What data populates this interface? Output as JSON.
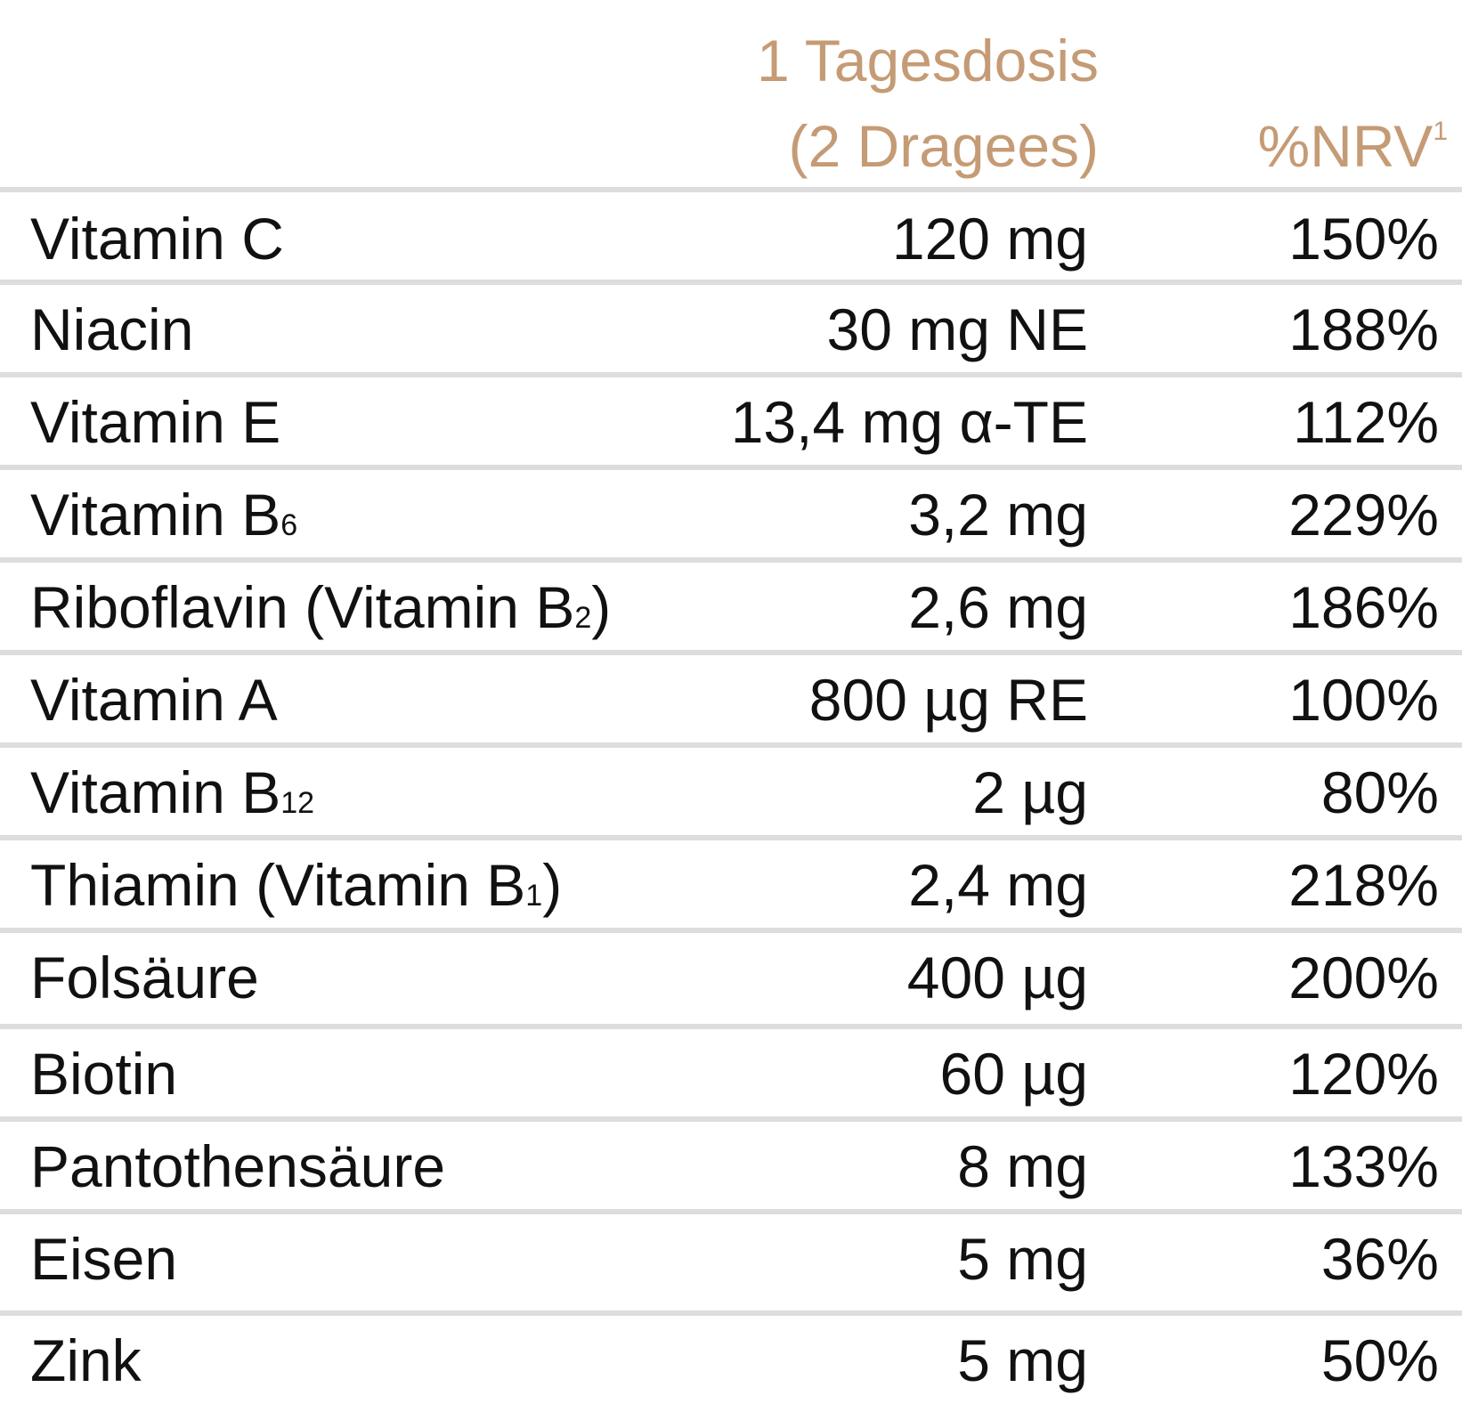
{
  "header": {
    "dose_line1": "1 Tagesdosis",
    "dose_line2": "(2 Dragees)",
    "nrv_label": "%NRV",
    "nrv_footnote": "1"
  },
  "colors": {
    "header_text": "#c59b75",
    "body_text": "#111111",
    "rule": "#dddddd",
    "background": "#ffffff"
  },
  "rows": [
    {
      "name": "Vitamin C",
      "sub": "",
      "suffix": "",
      "dose": "120 mg",
      "nrv": "150%"
    },
    {
      "name": "Niacin",
      "sub": "",
      "suffix": "",
      "dose": "30 mg NE",
      "nrv": "188%"
    },
    {
      "name": "Vitamin E",
      "sub": "",
      "suffix": "",
      "dose": "13,4 mg α-TE",
      "nrv": "112%"
    },
    {
      "name": "Vitamin B",
      "sub": "6",
      "suffix": "",
      "dose": "3,2 mg",
      "nrv": "229%"
    },
    {
      "name": "Riboflavin (Vitamin B",
      "sub": "2",
      "suffix": ")",
      "dose": "2,6 mg",
      "nrv": "186%"
    },
    {
      "name": "Vitamin A",
      "sub": "",
      "suffix": "",
      "dose": "800 µg RE",
      "nrv": "100%"
    },
    {
      "name": "Vitamin B",
      "sub": "12",
      "suffix": "",
      "dose": "2 µg",
      "nrv": "80%"
    },
    {
      "name": "Thiamin (Vitamin B",
      "sub": "1",
      "suffix": ")",
      "dose": "2,4 mg",
      "nrv": "218%"
    },
    {
      "name": "Folsäure",
      "sub": "",
      "suffix": "",
      "dose": "400 µg",
      "nrv": "200%"
    },
    {
      "name": "Biotin",
      "sub": "",
      "suffix": "",
      "dose": "60 µg",
      "nrv": "120%"
    },
    {
      "name": "Pantothensäure",
      "sub": "",
      "suffix": "",
      "dose": "8 mg",
      "nrv": "133%"
    },
    {
      "name": "Eisen",
      "sub": "",
      "suffix": "",
      "dose": "5 mg",
      "nrv": "36%"
    },
    {
      "name": "Zink",
      "sub": "",
      "suffix": "",
      "dose": "5 mg",
      "nrv": "50%"
    }
  ]
}
